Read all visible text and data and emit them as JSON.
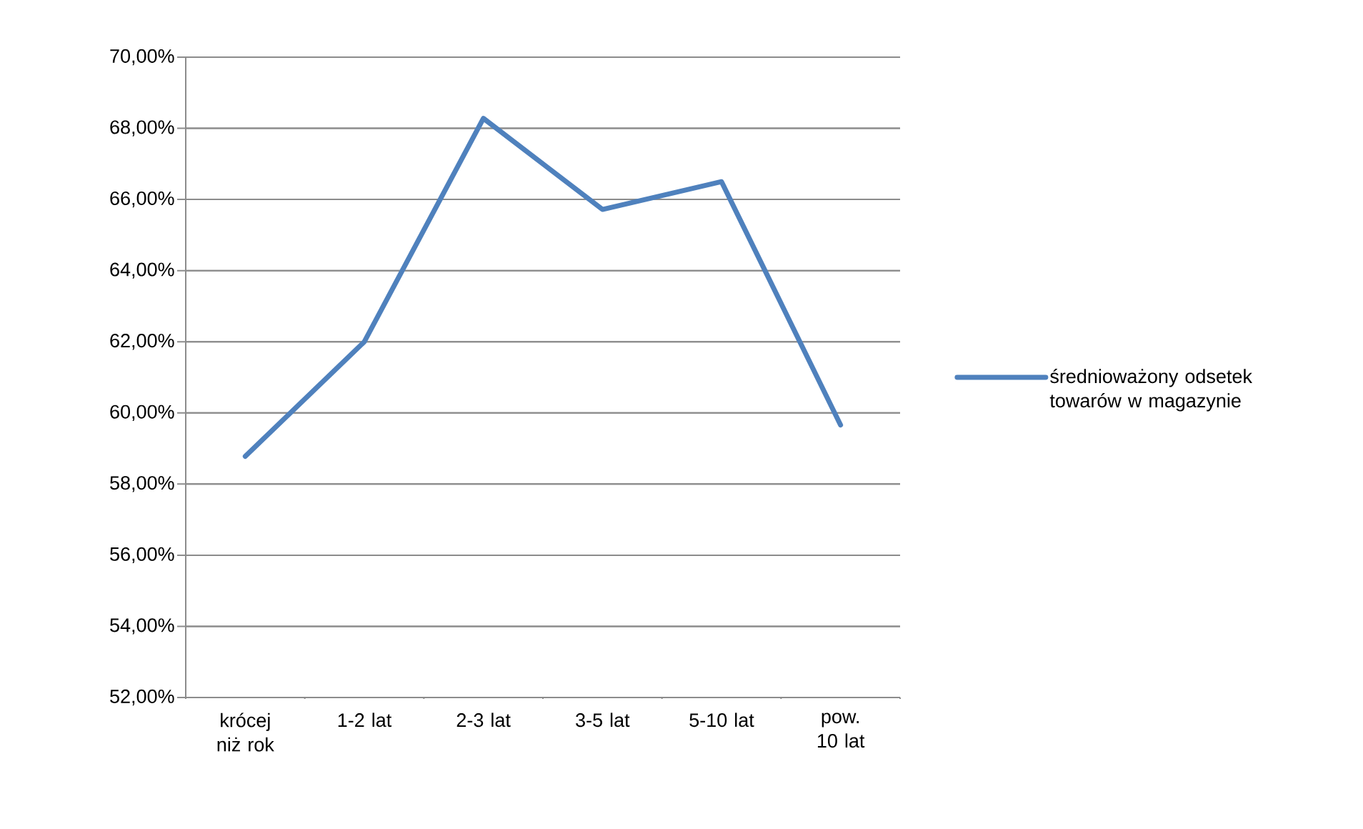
{
  "chart_data": {
    "type": "line",
    "categories": [
      "krócej niż rok",
      "1-2 lat",
      "2-3 lat",
      "3-5 lat",
      "5-10 lat",
      "pow. 10 lat"
    ],
    "series": [
      {
        "name": "średnioważony odsetek towarów w magazynie",
        "color": "#4f81bd",
        "values": [
          58.78,
          62.0,
          68.28,
          65.72,
          66.5,
          59.66
        ]
      }
    ],
    "ylim": [
      52,
      70
    ],
    "yticks": [
      {
        "value": 52,
        "label": "52,00%"
      },
      {
        "value": 54,
        "label": "54,00%"
      },
      {
        "value": 56,
        "label": "56,00%"
      },
      {
        "value": 58,
        "label": "58,00%"
      },
      {
        "value": 60,
        "label": "60,00%"
      },
      {
        "value": 62,
        "label": "62,00%"
      },
      {
        "value": 64,
        "label": "64,00%"
      },
      {
        "value": 66,
        "label": "66,00%"
      },
      {
        "value": 68,
        "label": "68,00%"
      },
      {
        "value": 70,
        "label": "70,00%"
      }
    ],
    "grid": "y",
    "legend": "right",
    "marker": "none",
    "line_style": "solid"
  }
}
